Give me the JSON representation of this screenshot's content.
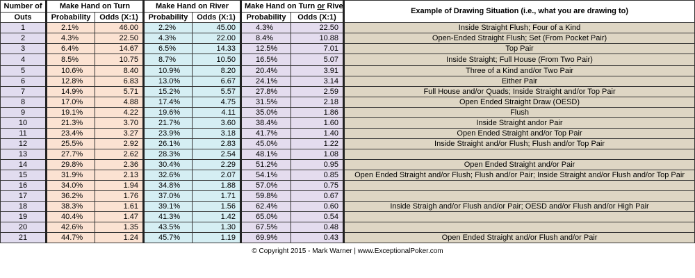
{
  "header": {
    "number_of": "Number of",
    "outs": "Outs",
    "turn_group": "Make Hand on Turn",
    "river_group": "Make Hand on River",
    "turn_or_river_prefix": "Make Hand on Turn ",
    "turn_or_river_or": "or",
    "turn_or_river_suffix": " River",
    "probability": "Probability",
    "odds": "Odds (X:1)",
    "example": "Example of Drawing Situation (i.e., what you are drawing to)"
  },
  "rows": [
    {
      "outs": "1",
      "tp": "2.1%",
      "to": "46.00",
      "rp": "2.2%",
      "ro": "45.00",
      "trp": "4.3%",
      "tro": "22.50",
      "ex": "Inside Straight Flush; Four of a Kind"
    },
    {
      "outs": "2",
      "tp": "4.3%",
      "to": "22.50",
      "rp": "4.3%",
      "ro": "22.00",
      "trp": "8.4%",
      "tro": "10.88",
      "ex": "Open-Ended Straight Flush; Set (From Pocket Pair)"
    },
    {
      "outs": "3",
      "tp": "6.4%",
      "to": "14.67",
      "rp": "6.5%",
      "ro": "14.33",
      "trp": "12.5%",
      "tro": "7.01",
      "ex": "Top Pair"
    },
    {
      "outs": "4",
      "tp": "8.5%",
      "to": "10.75",
      "rp": "8.7%",
      "ro": "10.50",
      "trp": "16.5%",
      "tro": "5.07",
      "ex": "Inside Straight; Full House (From Two Pair)"
    },
    {
      "outs": "5",
      "tp": "10.6%",
      "to": "8.40",
      "rp": "10.9%",
      "ro": "8.20",
      "trp": "20.4%",
      "tro": "3.91",
      "ex": "Three of a Kind and/or Two Pair"
    },
    {
      "outs": "6",
      "tp": "12.8%",
      "to": "6.83",
      "rp": "13.0%",
      "ro": "6.67",
      "trp": "24.1%",
      "tro": "3.14",
      "ex": "Either Pair"
    },
    {
      "outs": "7",
      "tp": "14.9%",
      "to": "5.71",
      "rp": "15.2%",
      "ro": "5.57",
      "trp": "27.8%",
      "tro": "2.59",
      "ex": "Full House and/or Quads; Inside Straight and/or Top Pair"
    },
    {
      "outs": "8",
      "tp": "17.0%",
      "to": "4.88",
      "rp": "17.4%",
      "ro": "4.75",
      "trp": "31.5%",
      "tro": "2.18",
      "ex": "Open Ended Straight Draw (OESD)"
    },
    {
      "outs": "9",
      "tp": "19.1%",
      "to": "4.22",
      "rp": "19.6%",
      "ro": "4.11",
      "trp": "35.0%",
      "tro": "1.86",
      "ex": "Flush"
    },
    {
      "outs": "10",
      "tp": "21.3%",
      "to": "3.70",
      "rp": "21.7%",
      "ro": "3.60",
      "trp": "38.4%",
      "tro": "1.60",
      "ex": "Inside Straight andor Pair"
    },
    {
      "outs": "11",
      "tp": "23.4%",
      "to": "3.27",
      "rp": "23.9%",
      "ro": "3.18",
      "trp": "41.7%",
      "tro": "1.40",
      "ex": "Open Ended Straight and/or Top Pair"
    },
    {
      "outs": "12",
      "tp": "25.5%",
      "to": "2.92",
      "rp": "26.1%",
      "ro": "2.83",
      "trp": "45.0%",
      "tro": "1.22",
      "ex": "Inside Straight and/or Flush; Flush and/or Top Pair"
    },
    {
      "outs": "13",
      "tp": "27.7%",
      "to": "2.62",
      "rp": "28.3%",
      "ro": "2.54",
      "trp": "48.1%",
      "tro": "1.08",
      "ex": ""
    },
    {
      "outs": "14",
      "tp": "29.8%",
      "to": "2.36",
      "rp": "30.4%",
      "ro": "2.29",
      "trp": "51.2%",
      "tro": "0.95",
      "ex": "Open Ended Straight and/or Pair"
    },
    {
      "outs": "15",
      "tp": "31.9%",
      "to": "2.13",
      "rp": "32.6%",
      "ro": "2.07",
      "trp": "54.1%",
      "tro": "0.85",
      "ex": "Open Ended Straight and/or Flush; Flush and/or Pair; Inside Straight and/or Flush and/or Top Pair"
    },
    {
      "outs": "16",
      "tp": "34.0%",
      "to": "1.94",
      "rp": "34.8%",
      "ro": "1.88",
      "trp": "57.0%",
      "tro": "0.75",
      "ex": ""
    },
    {
      "outs": "17",
      "tp": "36.2%",
      "to": "1.76",
      "rp": "37.0%",
      "ro": "1.71",
      "trp": "59.8%",
      "tro": "0.67",
      "ex": ""
    },
    {
      "outs": "18",
      "tp": "38.3%",
      "to": "1.61",
      "rp": "39.1%",
      "ro": "1.56",
      "trp": "62.4%",
      "tro": "0.60",
      "ex": "Inside Straigh and/or Flush and/or Pair; OESD and/or Flush and/or High Pair"
    },
    {
      "outs": "19",
      "tp": "40.4%",
      "to": "1.47",
      "rp": "41.3%",
      "ro": "1.42",
      "trp": "65.0%",
      "tro": "0.54",
      "ex": ""
    },
    {
      "outs": "20",
      "tp": "42.6%",
      "to": "1.35",
      "rp": "43.5%",
      "ro": "1.30",
      "trp": "67.5%",
      "tro": "0.48",
      "ex": ""
    },
    {
      "outs": "21",
      "tp": "44.7%",
      "to": "1.24",
      "rp": "45.7%",
      "ro": "1.19",
      "trp": "69.9%",
      "tro": "0.43",
      "ex": "Open Ended Straight and/or Flush and/or Pair"
    }
  ],
  "footer": "© Copyright 2015 - Mark Warner  |  www.ExceptionalPoker.com",
  "colors": {
    "outs_bg": "#e1dcef",
    "turn_bg": "#fbe2d2",
    "river_bg": "#d5eef3",
    "turn_or_river_bg": "#e4dcee",
    "example_bg": "#ded6c4"
  }
}
